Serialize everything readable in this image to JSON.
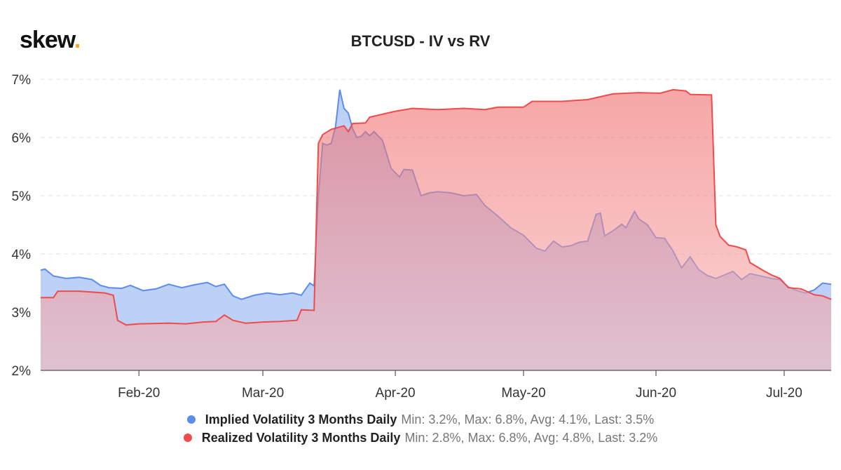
{
  "brand": {
    "name": "skew",
    "dot": "."
  },
  "chart_data": {
    "type": "area",
    "title": "BTCUSD - IV vs RV",
    "xlabel": "",
    "ylabel": "",
    "x_range": [
      "2020-01-09",
      "2020-07-12"
    ],
    "ylim": [
      2,
      7
    ],
    "y_ticks": [
      {
        "value": 2,
        "label": "2%"
      },
      {
        "value": 3,
        "label": "3%"
      },
      {
        "value": 4,
        "label": "4%"
      },
      {
        "value": 5,
        "label": "5%"
      },
      {
        "value": 6,
        "label": "6%"
      },
      {
        "value": 7,
        "label": "7%"
      }
    ],
    "x_ticks": [
      {
        "date": "2020-02-01",
        "label": "Feb-20"
      },
      {
        "date": "2020-03-01",
        "label": "Mar-20"
      },
      {
        "date": "2020-04-01",
        "label": "Apr-20"
      },
      {
        "date": "2020-05-01",
        "label": "May-20"
      },
      {
        "date": "2020-06-01",
        "label": "Jun-20"
      },
      {
        "date": "2020-07-01",
        "label": "Jul-20"
      }
    ],
    "grid": "horizontal dashed",
    "legend_position": "bottom",
    "series": [
      {
        "name": "Implied Volatility 3 Months Daily",
        "stats": "Min: 3.2%, Max: 6.8%, Avg: 4.1%, Last: 3.5%",
        "color": "#5b8def",
        "fill": "#b9cdf6",
        "points": [
          [
            "2020-01-09",
            3.72
          ],
          [
            "2020-01-10",
            3.74
          ],
          [
            "2020-01-12",
            3.62
          ],
          [
            "2020-01-15",
            3.58
          ],
          [
            "2020-01-18",
            3.6
          ],
          [
            "2020-01-21",
            3.56
          ],
          [
            "2020-01-23",
            3.46
          ],
          [
            "2020-01-25",
            3.42
          ],
          [
            "2020-01-28",
            3.41
          ],
          [
            "2020-01-30",
            3.46
          ],
          [
            "2020-02-02",
            3.37
          ],
          [
            "2020-02-05",
            3.4
          ],
          [
            "2020-02-08",
            3.48
          ],
          [
            "2020-02-11",
            3.42
          ],
          [
            "2020-02-14",
            3.47
          ],
          [
            "2020-02-17",
            3.51
          ],
          [
            "2020-02-19",
            3.44
          ],
          [
            "2020-02-21",
            3.48
          ],
          [
            "2020-02-23",
            3.28
          ],
          [
            "2020-02-25",
            3.22
          ],
          [
            "2020-02-28",
            3.29
          ],
          [
            "2020-03-02",
            3.33
          ],
          [
            "2020-03-05",
            3.3
          ],
          [
            "2020-03-08",
            3.33
          ],
          [
            "2020-03-10",
            3.29
          ],
          [
            "2020-03-12",
            3.5
          ],
          [
            "2020-03-13",
            3.45
          ],
          [
            "2020-03-14",
            5.0
          ],
          [
            "2020-03-15",
            5.9
          ],
          [
            "2020-03-16",
            5.87
          ],
          [
            "2020-03-17",
            5.9
          ],
          [
            "2020-03-18",
            6.18
          ],
          [
            "2020-03-19",
            6.82
          ],
          [
            "2020-03-20",
            6.5
          ],
          [
            "2020-03-21",
            6.42
          ],
          [
            "2020-03-22",
            6.15
          ],
          [
            "2020-03-23",
            6.0
          ],
          [
            "2020-03-24",
            6.02
          ],
          [
            "2020-03-25",
            6.1
          ],
          [
            "2020-03-26",
            6.03
          ],
          [
            "2020-03-27",
            6.1
          ],
          [
            "2020-03-29",
            5.95
          ],
          [
            "2020-03-31",
            5.47
          ],
          [
            "2020-04-02",
            5.32
          ],
          [
            "2020-04-03",
            5.45
          ],
          [
            "2020-04-05",
            5.44
          ],
          [
            "2020-04-07",
            5.0
          ],
          [
            "2020-04-09",
            5.05
          ],
          [
            "2020-04-11",
            5.07
          ],
          [
            "2020-04-14",
            5.05
          ],
          [
            "2020-04-17",
            5.0
          ],
          [
            "2020-04-20",
            5.02
          ],
          [
            "2020-04-22",
            4.83
          ],
          [
            "2020-04-25",
            4.65
          ],
          [
            "2020-04-28",
            4.45
          ],
          [
            "2020-05-01",
            4.32
          ],
          [
            "2020-05-04",
            4.1
          ],
          [
            "2020-05-06",
            4.05
          ],
          [
            "2020-05-08",
            4.22
          ],
          [
            "2020-05-10",
            4.12
          ],
          [
            "2020-05-12",
            4.14
          ],
          [
            "2020-05-14",
            4.2
          ],
          [
            "2020-05-16",
            4.22
          ],
          [
            "2020-05-18",
            4.68
          ],
          [
            "2020-05-19",
            4.7
          ],
          [
            "2020-05-20",
            4.31
          ],
          [
            "2020-05-22",
            4.4
          ],
          [
            "2020-05-24",
            4.51
          ],
          [
            "2020-05-25",
            4.45
          ],
          [
            "2020-05-27",
            4.73
          ],
          [
            "2020-05-28",
            4.6
          ],
          [
            "2020-05-30",
            4.5
          ],
          [
            "2020-06-01",
            4.28
          ],
          [
            "2020-06-03",
            4.27
          ],
          [
            "2020-06-05",
            4.05
          ],
          [
            "2020-06-07",
            3.76
          ],
          [
            "2020-06-09",
            3.95
          ],
          [
            "2020-06-11",
            3.73
          ],
          [
            "2020-06-13",
            3.63
          ],
          [
            "2020-06-15",
            3.58
          ],
          [
            "2020-06-17",
            3.64
          ],
          [
            "2020-06-19",
            3.7
          ],
          [
            "2020-06-21",
            3.56
          ],
          [
            "2020-06-23",
            3.66
          ],
          [
            "2020-06-25",
            3.63
          ],
          [
            "2020-06-28",
            3.58
          ],
          [
            "2020-06-30",
            3.56
          ],
          [
            "2020-07-02",
            3.43
          ],
          [
            "2020-07-04",
            3.37
          ],
          [
            "2020-07-06",
            3.33
          ],
          [
            "2020-07-08",
            3.38
          ],
          [
            "2020-07-10",
            3.5
          ],
          [
            "2020-07-12",
            3.48
          ]
        ]
      },
      {
        "name": "Realized Volatility 3 Months Daily",
        "stats": "Min: 2.8%, Max: 6.8%, Avg: 4.8%, Last: 3.2%",
        "color": "#f04b4b",
        "fill": "#f27f7f",
        "points": [
          [
            "2020-01-09",
            3.25
          ],
          [
            "2020-01-12",
            3.25
          ],
          [
            "2020-01-13",
            3.36
          ],
          [
            "2020-01-18",
            3.36
          ],
          [
            "2020-01-24",
            3.33
          ],
          [
            "2020-01-26",
            3.29
          ],
          [
            "2020-01-27",
            2.86
          ],
          [
            "2020-01-29",
            2.78
          ],
          [
            "2020-02-01",
            2.8
          ],
          [
            "2020-02-08",
            2.81
          ],
          [
            "2020-02-12",
            2.8
          ],
          [
            "2020-02-16",
            2.83
          ],
          [
            "2020-02-19",
            2.84
          ],
          [
            "2020-02-21",
            2.95
          ],
          [
            "2020-02-23",
            2.86
          ],
          [
            "2020-02-26",
            2.81
          ],
          [
            "2020-03-01",
            2.83
          ],
          [
            "2020-03-05",
            2.84
          ],
          [
            "2020-03-09",
            2.86
          ],
          [
            "2020-03-10",
            3.04
          ],
          [
            "2020-03-13",
            3.03
          ],
          [
            "2020-03-14",
            5.9
          ],
          [
            "2020-03-15",
            6.05
          ],
          [
            "2020-03-17",
            6.14
          ],
          [
            "2020-03-20",
            6.2
          ],
          [
            "2020-03-21",
            6.1
          ],
          [
            "2020-03-22",
            6.24
          ],
          [
            "2020-03-25",
            6.25
          ],
          [
            "2020-03-26",
            6.35
          ],
          [
            "2020-04-01",
            6.45
          ],
          [
            "2020-04-05",
            6.5
          ],
          [
            "2020-04-11",
            6.48
          ],
          [
            "2020-04-17",
            6.5
          ],
          [
            "2020-04-22",
            6.48
          ],
          [
            "2020-04-25",
            6.52
          ],
          [
            "2020-05-01",
            6.52
          ],
          [
            "2020-05-03",
            6.62
          ],
          [
            "2020-05-10",
            6.62
          ],
          [
            "2020-05-16",
            6.65
          ],
          [
            "2020-05-22",
            6.75
          ],
          [
            "2020-05-28",
            6.77
          ],
          [
            "2020-06-02",
            6.76
          ],
          [
            "2020-06-05",
            6.82
          ],
          [
            "2020-06-08",
            6.8
          ],
          [
            "2020-06-09",
            6.74
          ],
          [
            "2020-06-14",
            6.73
          ],
          [
            "2020-06-15",
            4.5
          ],
          [
            "2020-06-16",
            4.3
          ],
          [
            "2020-06-18",
            4.15
          ],
          [
            "2020-06-20",
            4.12
          ],
          [
            "2020-06-22",
            4.07
          ],
          [
            "2020-06-23",
            3.85
          ],
          [
            "2020-06-26",
            3.72
          ],
          [
            "2020-06-28",
            3.64
          ],
          [
            "2020-06-30",
            3.58
          ],
          [
            "2020-07-02",
            3.42
          ],
          [
            "2020-07-05",
            3.4
          ],
          [
            "2020-07-08",
            3.3
          ],
          [
            "2020-07-10",
            3.28
          ],
          [
            "2020-07-12",
            3.22
          ]
        ]
      }
    ]
  }
}
